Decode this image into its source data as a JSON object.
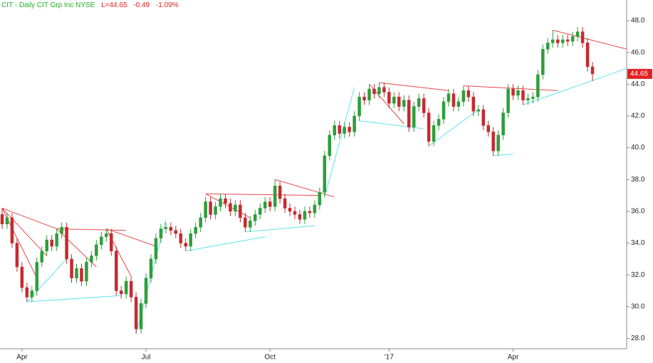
{
  "chart_data": {
    "type": "candlestick",
    "header": {
      "name": "CIT - Daily  CIT Grp Inc  NYSE",
      "last": "L=44.65",
      "change": "-0.49",
      "change_pct": "-1.09%"
    },
    "last_price_label": "44.65",
    "ylim": [
      27.35,
      49.3
    ],
    "yticks": [
      {
        "value": 28,
        "label": "28.0"
      },
      {
        "value": 30,
        "label": "30.0"
      },
      {
        "value": 32,
        "label": "32.0"
      },
      {
        "value": 34,
        "label": "34.0"
      },
      {
        "value": 36,
        "label": "36.0"
      },
      {
        "value": 38,
        "label": "38.0"
      },
      {
        "value": 40,
        "label": "40.0"
      },
      {
        "value": 42,
        "label": "42.0"
      },
      {
        "value": 44,
        "label": "44.0"
      },
      {
        "value": 46,
        "label": "46.0"
      },
      {
        "value": 48,
        "label": "48.0"
      }
    ],
    "grid": false,
    "up_color": "#2e9e3a",
    "down_color": "#c62a2f",
    "categories": [
      null,
      null,
      null,
      null,
      "Apr",
      null,
      null,
      null,
      null,
      null,
      null,
      null,
      null,
      null,
      null,
      null,
      null,
      null,
      null,
      null,
      null,
      null,
      null,
      null,
      null,
      null,
      null,
      null,
      null,
      "Jul",
      null,
      null,
      null,
      null,
      null,
      null,
      null,
      null,
      null,
      null,
      null,
      null,
      null,
      null,
      null,
      null,
      null,
      null,
      null,
      null,
      null,
      null,
      null,
      null,
      "Oct",
      null,
      null,
      null,
      null,
      null,
      null,
      null,
      null,
      null,
      null,
      null,
      null,
      null,
      null,
      null,
      null,
      null,
      null,
      null,
      null,
      null,
      null,
      null,
      "'17",
      null,
      null,
      null,
      null,
      null,
      null,
      null,
      null,
      null,
      null,
      null,
      null,
      null,
      null,
      null,
      null,
      null,
      null,
      null,
      null,
      null,
      null,
      null,
      null,
      "Apr",
      null,
      null,
      null,
      null,
      null,
      null,
      null,
      null,
      null,
      null,
      null,
      null,
      null,
      null,
      null,
      null
    ],
    "candles": [
      [
        35.8,
        36.2,
        34.9,
        35.2
      ],
      [
        35.2,
        35.9,
        34.9,
        35.6
      ],
      [
        35.6,
        35.9,
        33.7,
        34.0
      ],
      [
        34.0,
        34.3,
        32.2,
        32.5
      ],
      [
        32.5,
        32.8,
        30.9,
        31.2
      ],
      [
        31.2,
        31.5,
        30.3,
        30.6
      ],
      [
        30.6,
        31.3,
        30.3,
        31.0
      ],
      [
        31.0,
        33.1,
        30.7,
        32.8
      ],
      [
        32.8,
        33.8,
        32.5,
        33.5
      ],
      [
        33.5,
        34.5,
        33.2,
        34.2
      ],
      [
        34.2,
        34.5,
        33.5,
        33.8
      ],
      [
        33.8,
        34.9,
        33.5,
        34.6
      ],
      [
        34.6,
        35.3,
        34.3,
        35.0
      ],
      [
        35.0,
        35.3,
        32.7,
        33.0
      ],
      [
        33.0,
        33.3,
        31.5,
        31.8
      ],
      [
        31.8,
        32.7,
        31.5,
        32.4
      ],
      [
        32.4,
        32.7,
        31.3,
        31.6
      ],
      [
        31.6,
        33.1,
        31.3,
        32.8
      ],
      [
        32.8,
        33.5,
        32.5,
        33.2
      ],
      [
        33.2,
        34.2,
        32.9,
        33.9
      ],
      [
        33.9,
        34.7,
        33.6,
        34.4
      ],
      [
        34.4,
        34.9,
        34.1,
        34.6
      ],
      [
        34.6,
        34.9,
        33.2,
        33.5
      ],
      [
        33.5,
        33.8,
        30.7,
        31.0
      ],
      [
        31.0,
        31.3,
        30.5,
        30.8
      ],
      [
        30.8,
        31.9,
        30.5,
        31.6
      ],
      [
        31.6,
        31.9,
        30.3,
        30.6
      ],
      [
        30.6,
        30.9,
        28.3,
        28.6
      ],
      [
        28.6,
        30.5,
        28.3,
        30.2
      ],
      [
        30.2,
        32.1,
        29.9,
        31.8
      ],
      [
        31.8,
        33.3,
        31.5,
        33.0
      ],
      [
        33.0,
        34.6,
        32.7,
        34.3
      ],
      [
        34.3,
        35.2,
        34.0,
        34.9
      ],
      [
        34.9,
        35.3,
        34.6,
        35.0
      ],
      [
        35.0,
        35.3,
        34.5,
        34.8
      ],
      [
        34.8,
        35.1,
        34.3,
        34.6
      ],
      [
        34.6,
        34.9,
        33.7,
        34.0
      ],
      [
        34.0,
        34.3,
        33.5,
        33.8
      ],
      [
        33.8,
        34.9,
        33.5,
        34.6
      ],
      [
        34.6,
        35.3,
        34.3,
        35.0
      ],
      [
        35.0,
        35.9,
        34.7,
        35.6
      ],
      [
        35.6,
        36.9,
        35.3,
        36.6
      ],
      [
        36.6,
        36.9,
        35.5,
        35.8
      ],
      [
        35.8,
        36.6,
        35.5,
        36.3
      ],
      [
        36.3,
        37.1,
        36.0,
        36.8
      ],
      [
        36.8,
        37.1,
        36.2,
        36.5
      ],
      [
        36.5,
        36.8,
        35.7,
        36.0
      ],
      [
        36.0,
        36.7,
        35.7,
        36.4
      ],
      [
        36.4,
        36.7,
        35.3,
        35.6
      ],
      [
        35.6,
        35.9,
        34.7,
        35.0
      ],
      [
        35.0,
        35.7,
        34.7,
        35.4
      ],
      [
        35.4,
        36.1,
        35.1,
        35.8
      ],
      [
        35.8,
        36.5,
        35.5,
        36.2
      ],
      [
        36.2,
        36.9,
        35.9,
        36.6
      ],
      [
        36.6,
        36.9,
        36.0,
        36.3
      ],
      [
        36.3,
        38.0,
        36.0,
        37.6
      ],
      [
        37.6,
        37.9,
        36.5,
        36.8
      ],
      [
        36.8,
        37.1,
        35.9,
        36.2
      ],
      [
        36.2,
        36.5,
        35.7,
        36.0
      ],
      [
        36.0,
        36.3,
        35.5,
        35.8
      ],
      [
        35.8,
        36.1,
        35.2,
        35.5
      ],
      [
        35.5,
        36.3,
        35.2,
        36.0
      ],
      [
        36.0,
        36.3,
        35.6,
        35.9
      ],
      [
        35.9,
        36.7,
        35.6,
        36.4
      ],
      [
        36.4,
        37.5,
        36.1,
        37.2
      ],
      [
        37.2,
        39.8,
        36.9,
        39.5
      ],
      [
        39.5,
        41.1,
        39.2,
        40.8
      ],
      [
        40.8,
        41.7,
        40.5,
        41.4
      ],
      [
        41.4,
        41.7,
        40.6,
        40.9
      ],
      [
        40.9,
        41.6,
        40.6,
        41.3
      ],
      [
        41.3,
        41.6,
        40.7,
        41.0
      ],
      [
        41.0,
        42.3,
        40.7,
        42.0
      ],
      [
        42.0,
        43.5,
        41.7,
        43.2
      ],
      [
        43.2,
        43.5,
        42.7,
        43.0
      ],
      [
        43.0,
        44.0,
        42.7,
        43.7
      ],
      [
        43.7,
        44.0,
        43.1,
        43.4
      ],
      [
        43.4,
        44.1,
        43.1,
        43.8
      ],
      [
        43.8,
        44.1,
        43.2,
        43.5
      ],
      [
        43.5,
        43.8,
        42.5,
        42.8
      ],
      [
        42.8,
        43.5,
        42.5,
        43.2
      ],
      [
        43.2,
        43.5,
        42.3,
        42.6
      ],
      [
        42.6,
        43.3,
        42.3,
        43.0
      ],
      [
        43.0,
        43.3,
        41.0,
        41.3
      ],
      [
        41.3,
        42.9,
        41.0,
        42.6
      ],
      [
        42.6,
        43.4,
        42.3,
        43.1
      ],
      [
        43.1,
        43.4,
        41.9,
        42.2
      ],
      [
        42.2,
        42.5,
        40.1,
        40.4
      ],
      [
        40.4,
        41.7,
        40.1,
        41.4
      ],
      [
        41.4,
        42.1,
        41.1,
        41.8
      ],
      [
        41.8,
        43.2,
        41.5,
        42.9
      ],
      [
        42.9,
        43.7,
        42.6,
        43.4
      ],
      [
        43.4,
        43.7,
        42.3,
        42.6
      ],
      [
        42.6,
        43.2,
        42.3,
        42.9
      ],
      [
        42.9,
        43.9,
        42.6,
        43.6
      ],
      [
        43.6,
        43.9,
        42.9,
        43.2
      ],
      [
        43.2,
        43.5,
        42.0,
        42.3
      ],
      [
        42.3,
        42.7,
        42.0,
        42.4
      ],
      [
        42.4,
        42.7,
        41.1,
        41.4
      ],
      [
        41.4,
        41.7,
        40.7,
        41.0
      ],
      [
        41.0,
        41.3,
        39.5,
        39.8
      ],
      [
        39.8,
        41.1,
        39.5,
        40.8
      ],
      [
        40.8,
        42.5,
        40.5,
        42.2
      ],
      [
        42.2,
        44.0,
        41.9,
        43.7
      ],
      [
        43.7,
        44.0,
        43.0,
        43.3
      ],
      [
        43.3,
        43.9,
        43.0,
        43.6
      ],
      [
        43.6,
        43.9,
        42.7,
        43.0
      ],
      [
        43.0,
        43.4,
        42.7,
        43.1
      ],
      [
        43.1,
        43.5,
        42.8,
        43.2
      ],
      [
        43.2,
        44.9,
        42.9,
        44.6
      ],
      [
        44.6,
        46.5,
        44.3,
        46.2
      ],
      [
        46.2,
        46.9,
        45.9,
        46.6
      ],
      [
        46.6,
        47.4,
        46.3,
        46.8
      ],
      [
        46.8,
        47.1,
        46.3,
        46.6
      ],
      [
        46.6,
        47.1,
        46.3,
        46.8
      ],
      [
        46.8,
        47.1,
        46.4,
        46.7
      ],
      [
        46.7,
        47.3,
        46.4,
        47.0
      ],
      [
        47.0,
        47.6,
        46.7,
        47.3
      ],
      [
        47.3,
        47.6,
        46.3,
        46.6
      ],
      [
        46.6,
        46.9,
        44.8,
        45.1
      ],
      [
        45.1,
        45.4,
        44.2,
        44.65
      ]
    ],
    "trendlines": [
      {
        "color": "#e8474b",
        "from": [
          0,
          36.2
        ],
        "to": [
          11,
          34.9
        ]
      },
      {
        "color": "#e8474b",
        "from": [
          0,
          36.2
        ],
        "to": [
          9,
          33.2
        ]
      },
      {
        "color": "#e8474b",
        "from": [
          0,
          36.2
        ],
        "to": [
          7,
          31.8
        ]
      },
      {
        "color": "#e8474b",
        "from": [
          11,
          34.9
        ],
        "to": [
          25,
          34.8
        ]
      },
      {
        "color": "#e8474b",
        "from": [
          11,
          34.9
        ],
        "to": [
          19,
          32.5
        ]
      },
      {
        "color": "#e8474b",
        "from": [
          21,
          34.9
        ],
        "to": [
          31,
          33.8
        ]
      },
      {
        "color": "#e8474b",
        "from": [
          21,
          34.9
        ],
        "to": [
          26,
          31.9
        ]
      },
      {
        "color": "#e8474b",
        "from": [
          41,
          37.1
        ],
        "to": [
          64,
          37.0
        ]
      },
      {
        "color": "#e8474b",
        "from": [
          41,
          37.1
        ],
        "to": [
          50,
          35.6
        ]
      },
      {
        "color": "#e8474b",
        "from": [
          55,
          38.0
        ],
        "to": [
          67,
          36.9
        ]
      },
      {
        "color": "#e8474b",
        "from": [
          74,
          44.0
        ],
        "to": [
          81,
          41.5
        ]
      },
      {
        "color": "#e8474b",
        "from": [
          76,
          44.1
        ],
        "to": [
          90,
          43.6
        ]
      },
      {
        "color": "#e8474b",
        "from": [
          93,
          43.9
        ],
        "to": [
          112,
          43.6
        ]
      },
      {
        "color": "#e8474b",
        "from": [
          111,
          47.4
        ],
        "to": [
          126,
          46.2
        ]
      },
      {
        "color": "#5ee3ee",
        "from": [
          5,
          30.3
        ],
        "to": [
          24,
          30.7
        ]
      },
      {
        "color": "#5ee3ee",
        "from": [
          5,
          30.3
        ],
        "to": [
          13,
          33.0
        ]
      },
      {
        "color": "#5ee3ee",
        "from": [
          27,
          28.3
        ],
        "to": [
          33,
          35.5
        ]
      },
      {
        "color": "#5ee3ee",
        "from": [
          37,
          33.5
        ],
        "to": [
          53,
          34.4
        ]
      },
      {
        "color": "#5ee3ee",
        "from": [
          49,
          34.7
        ],
        "to": [
          63,
          35.1
        ]
      },
      {
        "color": "#5ee3ee",
        "from": [
          65,
          36.9
        ],
        "to": [
          71,
          43.8
        ]
      },
      {
        "color": "#5ee3ee",
        "from": [
          72,
          41.7
        ],
        "to": [
          85,
          41.2
        ]
      },
      {
        "color": "#5ee3ee",
        "from": [
          86,
          40.1
        ],
        "to": [
          96,
          42.4
        ]
      },
      {
        "color": "#5ee3ee",
        "from": [
          99,
          39.5
        ],
        "to": [
          103,
          39.6
        ]
      },
      {
        "color": "#5ee3ee",
        "from": [
          105,
          42.7
        ],
        "to": [
          126,
          45.0
        ]
      }
    ]
  }
}
